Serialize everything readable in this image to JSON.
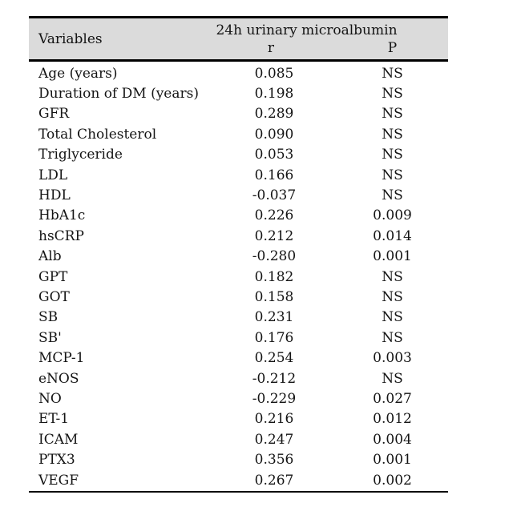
{
  "page": {
    "background": "#ffffff"
  },
  "table": {
    "colors": {
      "header_bg": "#dbdbdb",
      "rule": "#000000",
      "text": "#141414"
    },
    "header": {
      "variables_label": "Variables",
      "group_label": "24h urinary microalbumin",
      "r_label": "r",
      "p_label": "P"
    },
    "rows": [
      {
        "variable": "Age (years)",
        "r": "0.085",
        "p": "NS"
      },
      {
        "variable": "Duration of DM (years)",
        "r": "0.198",
        "p": "NS"
      },
      {
        "variable": "GFR",
        "r": "0.289",
        "p": "NS"
      },
      {
        "variable": "Total Cholesterol",
        "r": "0.090",
        "p": "NS"
      },
      {
        "variable": "Triglyceride",
        "r": "0.053",
        "p": "NS"
      },
      {
        "variable": "LDL",
        "r": "0.166",
        "p": "NS"
      },
      {
        "variable": "HDL",
        "r": "-0.037",
        "p": "NS"
      },
      {
        "variable": "HbA1c",
        "r": "0.226",
        "p": "0.009"
      },
      {
        "variable": "hsCRP",
        "r": "0.212",
        "p": "0.014"
      },
      {
        "variable": "Alb",
        "r": "-0.280",
        "p": "0.001"
      },
      {
        "variable": "GPT",
        "r": "0.182",
        "p": "NS"
      },
      {
        "variable": "GOT",
        "r": "0.158",
        "p": "NS"
      },
      {
        "variable": "SB",
        "r": "0.231",
        "p": "NS"
      },
      {
        "variable": "SB'",
        "r": "0.176",
        "p": "NS"
      },
      {
        "variable": "MCP-1",
        "r": "0.254",
        "p": "0.003"
      },
      {
        "variable": "eNOS",
        "r": "-0.212",
        "p": "NS"
      },
      {
        "variable": "NO",
        "r": "-0.229",
        "p": "0.027"
      },
      {
        "variable": "ET-1",
        "r": "0.216",
        "p": "0.012"
      },
      {
        "variable": "ICAM",
        "r": "0.247",
        "p": "0.004"
      },
      {
        "variable": "PTX3",
        "r": "0.356",
        "p": "0.001"
      },
      {
        "variable": "VEGF",
        "r": "0.267",
        "p": "0.002"
      }
    ]
  }
}
